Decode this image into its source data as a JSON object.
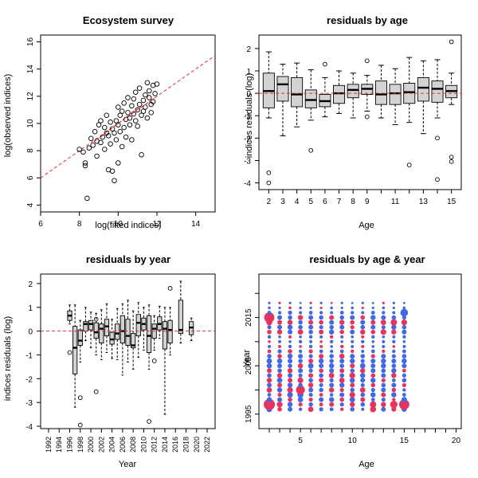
{
  "chart_data": [
    {
      "type": "scatter",
      "title": "Ecosystem survey",
      "xlabel": "log(fitted indices)",
      "ylabel": "log(observed indices)",
      "xlim": [
        6,
        15
      ],
      "ylim": [
        3.5,
        16.5
      ],
      "xticks": [
        6,
        8,
        10,
        12,
        14
      ],
      "yticks": [
        4,
        6,
        8,
        10,
        12,
        14,
        16
      ],
      "reference_line": {
        "style": "red dashed",
        "slope": 1,
        "intercept": 0
      },
      "smoother": {
        "style": "red dashed",
        "x": [
          8.6,
          9.2,
          10.0,
          10.8,
          11.4,
          11.9
        ],
        "y": [
          8.5,
          9.1,
          10.0,
          10.9,
          11.4,
          11.9
        ]
      },
      "points": [
        [
          8.0,
          8.1
        ],
        [
          8.2,
          7.9
        ],
        [
          8.3,
          6.9
        ],
        [
          8.3,
          7.1
        ],
        [
          8.4,
          4.5
        ],
        [
          8.5,
          8.2
        ],
        [
          8.6,
          8.9
        ],
        [
          8.7,
          8.4
        ],
        [
          8.8,
          9.4
        ],
        [
          8.9,
          8.7
        ],
        [
          8.9,
          7.6
        ],
        [
          9.0,
          9.9
        ],
        [
          9.1,
          8.6
        ],
        [
          9.1,
          10.2
        ],
        [
          9.2,
          9.0
        ],
        [
          9.3,
          9.7
        ],
        [
          9.3,
          8.1
        ],
        [
          9.4,
          9.3
        ],
        [
          9.4,
          10.6
        ],
        [
          9.5,
          6.6
        ],
        [
          9.5,
          9.1
        ],
        [
          9.6,
          8.5
        ],
        [
          9.6,
          10.1
        ],
        [
          9.7,
          6.5
        ],
        [
          9.7,
          9.6
        ],
        [
          9.8,
          5.8
        ],
        [
          9.8,
          9.3
        ],
        [
          9.9,
          10.2
        ],
        [
          9.9,
          8.8
        ],
        [
          10.0,
          9.9
        ],
        [
          10.0,
          7.1
        ],
        [
          10.0,
          11.2
        ],
        [
          10.1,
          9.4
        ],
        [
          10.1,
          10.6
        ],
        [
          10.2,
          8.3
        ],
        [
          10.2,
          10.9
        ],
        [
          10.3,
          9.7
        ],
        [
          10.3,
          11.5
        ],
        [
          10.4,
          10.3
        ],
        [
          10.4,
          9.0
        ],
        [
          10.5,
          10.8
        ],
        [
          10.5,
          11.9
        ],
        [
          10.6,
          9.9
        ],
        [
          10.6,
          10.4
        ],
        [
          10.7,
          11.3
        ],
        [
          10.7,
          8.8
        ],
        [
          10.8,
          10.7
        ],
        [
          10.8,
          11.8
        ],
        [
          10.9,
          10.2
        ],
        [
          10.9,
          12.3
        ],
        [
          11.0,
          11.0
        ],
        [
          11.0,
          9.8
        ],
        [
          11.1,
          11.4
        ],
        [
          11.1,
          12.6
        ],
        [
          11.2,
          10.6
        ],
        [
          11.2,
          7.7
        ],
        [
          11.3,
          11.7
        ],
        [
          11.3,
          10.9
        ],
        [
          11.4,
          12.1
        ],
        [
          11.4,
          11.2
        ],
        [
          11.5,
          13.0
        ],
        [
          11.5,
          10.4
        ],
        [
          11.6,
          11.9
        ],
        [
          11.6,
          12.4
        ],
        [
          11.7,
          11.4
        ],
        [
          11.7,
          10.8
        ],
        [
          11.8,
          12.8
        ],
        [
          11.8,
          11.6
        ],
        [
          11.9,
          12.2
        ],
        [
          12.0,
          12.9
        ]
      ]
    },
    {
      "type": "boxplot",
      "title": "residuals by age",
      "xlabel": "Age",
      "ylabel": "indices residuals (log)",
      "xlim": [
        1.3,
        15.7
      ],
      "ylim": [
        -4.3,
        2.6
      ],
      "xticks": [
        2,
        3,
        4,
        5,
        6,
        7,
        8,
        9,
        11,
        13,
        15
      ],
      "xticks_minor": [
        10,
        12,
        14
      ],
      "yticks": [
        -4,
        -3,
        -2,
        -1,
        0,
        1,
        2
      ],
      "reference_line": {
        "style": "red dashed",
        "y": 0
      },
      "boxes": [
        {
          "x": 2,
          "q1": -0.65,
          "med": 0.1,
          "q3": 0.9,
          "lo": -1.1,
          "hi": 1.85,
          "out": [
            -3.55,
            -4.0
          ]
        },
        {
          "x": 3,
          "q1": -0.35,
          "med": 0.4,
          "q3": 0.75,
          "lo": -1.9,
          "hi": 1.3,
          "out": []
        },
        {
          "x": 4,
          "q1": -0.6,
          "med": -0.05,
          "q3": 0.7,
          "lo": -1.5,
          "hi": 1.35,
          "out": []
        },
        {
          "x": 5,
          "q1": -0.65,
          "med": -0.3,
          "q3": 0.15,
          "lo": -1.2,
          "hi": 1.05,
          "out": [
            -2.55
          ]
        },
        {
          "x": 6,
          "q1": -0.6,
          "med": -0.35,
          "q3": -0.05,
          "lo": -1.05,
          "hi": 0.7,
          "out": [
            1.3
          ]
        },
        {
          "x": 7,
          "q1": -0.45,
          "med": 0.0,
          "q3": 0.35,
          "lo": -0.9,
          "hi": 1.0,
          "out": []
        },
        {
          "x": 8,
          "q1": -0.2,
          "med": 0.15,
          "q3": 0.4,
          "lo": -1.1,
          "hi": 0.9,
          "out": []
        },
        {
          "x": 9,
          "q1": -0.05,
          "med": 0.2,
          "q3": 0.4,
          "lo": -0.8,
          "hi": 0.8,
          "out": [
            1.45,
            -1.05
          ]
        },
        {
          "x": 10,
          "q1": -0.5,
          "med": -0.05,
          "q3": 0.55,
          "lo": -1.1,
          "hi": 1.25,
          "out": []
        },
        {
          "x": 11,
          "q1": -0.5,
          "med": 0.0,
          "q3": 0.4,
          "lo": -1.4,
          "hi": 1.1,
          "out": []
        },
        {
          "x": 12,
          "q1": -0.45,
          "med": 0.05,
          "q3": 0.45,
          "lo": -1.3,
          "hi": 1.6,
          "out": [
            -3.2
          ]
        },
        {
          "x": 13,
          "q1": -0.35,
          "med": 0.25,
          "q3": 0.7,
          "lo": -1.8,
          "hi": 1.45,
          "out": []
        },
        {
          "x": 14,
          "q1": -0.4,
          "med": 0.2,
          "q3": 0.55,
          "lo": -1.1,
          "hi": 1.5,
          "out": [
            -2.0,
            -3.85
          ]
        },
        {
          "x": 15,
          "q1": -0.2,
          "med": 0.1,
          "q3": 0.35,
          "lo": -0.5,
          "hi": 0.9,
          "out": [
            2.3,
            -2.85,
            -3.05
          ]
        }
      ]
    },
    {
      "type": "boxplot",
      "title": "residuals by year",
      "xlabel": "Year",
      "ylabel": "indices residuals (log)",
      "xlim": [
        1990.5,
        2023.5
      ],
      "ylim": [
        -4.1,
        2.4
      ],
      "xticks": [
        1992,
        1994,
        1996,
        1998,
        2000,
        2002,
        2004,
        2006,
        2008,
        2010,
        2012,
        2014,
        2016,
        2018,
        2020,
        2022
      ],
      "yticks": [
        -4,
        -3,
        -2,
        -1,
        0,
        1,
        2
      ],
      "reference_line": {
        "style": "red dashed",
        "y": 0
      },
      "boxes": [
        {
          "x": 1996,
          "q1": 0.45,
          "med": 0.65,
          "q3": 0.85,
          "lo": 0.3,
          "hi": 1.1,
          "out": [
            -0.9
          ]
        },
        {
          "x": 1997,
          "q1": -1.8,
          "med": -0.7,
          "q3": 0.2,
          "lo": -3.2,
          "hi": 1.1,
          "out": []
        },
        {
          "x": 1998,
          "q1": -0.6,
          "med": -0.4,
          "q3": 0.05,
          "lo": -1.3,
          "hi": 0.45,
          "out": [
            -2.8,
            -3.95
          ]
        },
        {
          "x": 1999,
          "q1": 0.0,
          "med": 0.3,
          "q3": 0.4,
          "lo": -0.4,
          "hi": 1.0,
          "out": []
        },
        {
          "x": 2000,
          "q1": 0.05,
          "med": 0.3,
          "q3": 0.45,
          "lo": -0.7,
          "hi": 0.8,
          "out": []
        },
        {
          "x": 2001,
          "q1": -0.3,
          "med": -0.05,
          "q3": 0.35,
          "lo": -1.0,
          "hi": 0.75,
          "out": [
            -2.55,
            0.5
          ]
        },
        {
          "x": 2002,
          "q1": -0.5,
          "med": 0.1,
          "q3": 0.3,
          "lo": -1.2,
          "hi": 0.9,
          "out": []
        },
        {
          "x": 2003,
          "q1": -0.2,
          "med": 0.2,
          "q3": 0.5,
          "lo": -0.9,
          "hi": 1.15,
          "out": []
        },
        {
          "x": 2004,
          "q1": -0.55,
          "med": -0.35,
          "q3": -0.05,
          "lo": -1.15,
          "hi": 0.5,
          "out": []
        },
        {
          "x": 2005,
          "q1": -0.35,
          "med": -0.1,
          "q3": 0.3,
          "lo": -1.2,
          "hi": 0.95,
          "out": []
        },
        {
          "x": 2006,
          "q1": -0.5,
          "med": 0.0,
          "q3": 0.65,
          "lo": -1.85,
          "hi": 1.15,
          "out": []
        },
        {
          "x": 2007,
          "q1": -0.6,
          "med": -0.2,
          "q3": 0.5,
          "lo": -1.3,
          "hi": 1.3,
          "out": []
        },
        {
          "x": 2008,
          "q1": -0.7,
          "med": -0.6,
          "q3": -0.1,
          "lo": -1.6,
          "hi": 0.85,
          "out": []
        },
        {
          "x": 2009,
          "q1": -0.2,
          "med": 0.35,
          "q3": 0.7,
          "lo": -1.1,
          "hi": 1.2,
          "out": []
        },
        {
          "x": 2010,
          "q1": 0.05,
          "med": 0.3,
          "q3": 0.55,
          "lo": -0.8,
          "hi": 1.0,
          "out": []
        },
        {
          "x": 2011,
          "q1": -0.9,
          "med": -0.2,
          "q3": 0.65,
          "lo": -1.6,
          "hi": 1.1,
          "out": [
            -3.8
          ]
        },
        {
          "x": 2012,
          "q1": -0.3,
          "med": 0.1,
          "q3": 0.3,
          "lo": -0.8,
          "hi": 0.65,
          "out": [
            -1.25
          ]
        },
        {
          "x": 2013,
          "q1": 0.05,
          "med": 0.3,
          "q3": 0.6,
          "lo": -0.3,
          "hi": 1.05,
          "out": []
        },
        {
          "x": 2014,
          "q1": -0.75,
          "med": 0.1,
          "q3": 0.4,
          "lo": -3.5,
          "hi": 1.0,
          "out": []
        },
        {
          "x": 2015,
          "q1": -0.5,
          "med": 0.05,
          "q3": 0.45,
          "lo": -1.0,
          "hi": 1.0,
          "out": [
            1.8
          ]
        },
        {
          "x": 2017,
          "q1": -0.1,
          "med": 0.05,
          "q3": 1.3,
          "lo": -0.5,
          "hi": 2.1,
          "out": []
        },
        {
          "x": 2019,
          "q1": -0.15,
          "med": 0.15,
          "q3": 0.4,
          "lo": -0.4,
          "hi": 0.55,
          "out": []
        }
      ]
    },
    {
      "type": "bubble",
      "title": "residuals by age & year",
      "xlabel": "Age",
      "ylabel": "Year",
      "xlim": [
        1,
        20.5
      ],
      "ylim": [
        1992,
        2024
      ],
      "xticks": [
        5,
        10,
        15,
        20
      ],
      "xticks_minor": [
        2,
        3,
        4,
        6,
        7,
        8,
        9,
        11,
        12,
        13,
        14,
        16,
        17,
        18,
        19
      ],
      "yticks": [
        1995,
        2005,
        2015
      ],
      "yticks_minor": [
        2000,
        2010,
        2020
      ],
      "ages": [
        2,
        3,
        4,
        5,
        6,
        7,
        8,
        9,
        10,
        11,
        12,
        13,
        14,
        15
      ],
      "years": [
        1996,
        1997,
        1998,
        1999,
        2000,
        2001,
        2002,
        2003,
        2004,
        2005,
        2006,
        2007,
        2008,
        2009,
        2010,
        2011,
        2012,
        2013,
        2014,
        2015,
        2016,
        2017,
        2018
      ],
      "colors": {
        "positive": "#4169e1",
        "negative": "#e8335e"
      },
      "sign_key": "each cell: 1 = blue (positive), -1 = red (negative); magnitude 0-3 drives dot size",
      "residual_grid": [
        [
          1.2,
          -0.8,
          0.9,
          0.5,
          -1.1,
          0.7,
          0.6,
          -0.5,
          0.8,
          0.4,
          -1.3,
          0.9,
          -0.9,
          1.0
        ],
        [
          -2.9,
          -1.2,
          1.0,
          -0.7,
          0.8,
          -0.6,
          -0.9,
          0.7,
          -1.0,
          0.8,
          -1.4,
          -1.0,
          -1.7,
          -2.6
        ],
        [
          1.0,
          0.9,
          -0.8,
          1.1,
          -0.7,
          0.9,
          1.0,
          -0.8,
          1.1,
          -0.9,
          0.6,
          0.7,
          -0.5,
          1.1
        ],
        [
          0.6,
          -0.7,
          1.2,
          1.3,
          0.7,
          -0.6,
          0.5,
          0.9,
          -1.2,
          0.8,
          1.0,
          -0.9,
          1.0,
          0.6
        ],
        [
          -1.1,
          1.0,
          -1.2,
          -2.2,
          0.9,
          0.8,
          -1.0,
          -0.7,
          0.8,
          -1.1,
          0.7,
          0.9,
          -0.8,
          0.5
        ],
        [
          0.9,
          -0.9,
          1.0,
          0.8,
          -1.0,
          0.7,
          0.9,
          1.0,
          -0.9,
          0.7,
          -0.8,
          0.8,
          0.9,
          -0.7
        ],
        [
          -1.0,
          1.1,
          -0.9,
          -1.2,
          0.8,
          -0.9,
          0.7,
          -1.1,
          1.0,
          0.9,
          1.0,
          -0.7,
          0.6,
          0.8
        ],
        [
          0.8,
          -1.0,
          0.9,
          0.7,
          -0.9,
          0.8,
          -1.1,
          0.8,
          -1.2,
          1.0,
          -0.8,
          0.9,
          -1.0,
          0.7
        ],
        [
          -0.9,
          0.8,
          -1.0,
          0.9,
          0.7,
          -0.8,
          0.9,
          -0.9,
          0.8,
          -1.0,
          0.9,
          0.8,
          1.0,
          -0.6
        ],
        [
          1.0,
          0.9,
          0.8,
          -1.0,
          1.1,
          0.9,
          1.0,
          0.8,
          -0.9,
          1.1,
          0.9,
          1.0,
          0.8,
          0.9
        ],
        [
          1.1,
          1.0,
          0.9,
          0.8,
          -0.9,
          1.0,
          0.8,
          0.9,
          1.0,
          0.7,
          0.9,
          1.0,
          0.9,
          1.0
        ],
        [
          0.8,
          -0.8,
          1.0,
          0.9,
          0.7,
          -0.9,
          0.8,
          -1.0,
          0.9,
          0.8,
          -0.7,
          0.9,
          0.7,
          0.8
        ],
        [
          -0.6,
          0.7,
          -0.8,
          0.5,
          -0.7,
          0.6,
          0.5,
          0.6,
          -0.5,
          0.4,
          0.6,
          -0.5,
          0.5,
          0.6
        ],
        [
          0.4,
          -0.4,
          0.5,
          -0.3,
          0.5,
          -0.4,
          0.3,
          -0.5,
          0.4,
          -0.4,
          0.3,
          0.4,
          -0.3,
          0.4
        ],
        [
          -0.3,
          0.4,
          0.3,
          0.5,
          0.4,
          -0.3,
          0.5,
          0.3,
          0.4,
          0.5,
          0.3,
          0.4,
          0.5,
          0.3
        ],
        [
          0.5,
          0.3,
          -0.4,
          0.3,
          0.5,
          0.4,
          -0.5,
          0.4,
          0.3,
          -0.4,
          0.5,
          0.3,
          0.4,
          0.5
        ],
        [
          -0.8,
          -1.0,
          0.9,
          -1.1,
          0.8,
          -0.9,
          1.0,
          -0.8,
          0.9,
          -1.0,
          -0.8,
          -1.2,
          -1.0,
          0.9
        ],
        [
          0.7,
          0.9,
          1.0,
          0.8,
          0.9,
          0.7,
          0.8,
          0.9,
          -0.7,
          0.8,
          0.9,
          0.7,
          1.0,
          0.8
        ],
        [
          -1.3,
          -0.9,
          -1.0,
          0.8,
          -0.9,
          -0.8,
          0.9,
          -1.0,
          -0.8,
          0.9,
          -0.9,
          -1.1,
          -1.4,
          -1.2
        ],
        [
          -2.6,
          0.9,
          0.8,
          -1.0,
          0.9,
          0.8,
          -0.9,
          0.8,
          0.9,
          -0.8,
          1.0,
          0.9,
          0.8,
          0.7
        ],
        [
          0.6,
          0.5,
          0.7,
          0.4,
          0.6,
          0.5,
          0.4,
          0.6,
          0.5,
          0.4,
          0.6,
          0.5,
          0.4,
          1.8
        ],
        [
          0.3,
          0.2,
          -0.3,
          0.3,
          0.2,
          -0.2,
          0.3,
          0.2,
          0.3,
          -0.2,
          0.2,
          0.3,
          0.2,
          0.3
        ],
        [
          0.2,
          -0.2,
          0.2,
          0.1,
          -0.2,
          0.2,
          -0.1,
          0.2,
          0.1,
          0.2,
          0.1,
          -0.2,
          0.2,
          0.1
        ]
      ]
    }
  ]
}
